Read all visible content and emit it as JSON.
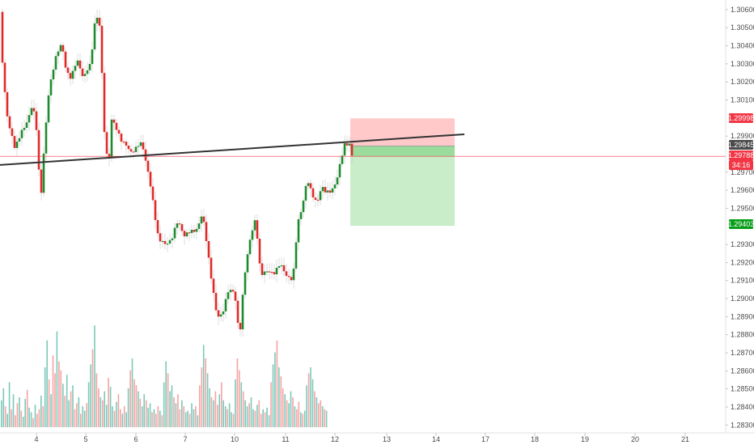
{
  "chart_data": {
    "type": "candlestick",
    "price_axis": {
      "ticks": [
        "1.30600",
        "1.30500",
        "1.30400",
        "1.30300",
        "1.30200",
        "1.30100",
        "1.29900",
        "1.29700",
        "1.29600",
        "1.29500",
        "1.29300",
        "1.29200",
        "1.29100",
        "1.29000",
        "1.28900",
        "1.28800",
        "1.28700",
        "1.28600",
        "1.28500",
        "1.28400",
        "1.28300"
      ],
      "ylim": [
        1.2827,
        1.3064
      ],
      "log_scale": false
    },
    "time_axis": {
      "ticks": [
        "4",
        "5",
        "6",
        "7",
        "10",
        "11",
        "12",
        "13",
        "14",
        "17",
        "18",
        "19",
        "20",
        "21"
      ]
    },
    "price_badges": [
      {
        "label": "1.29998",
        "value": 1.29998,
        "color": "#f23645"
      },
      {
        "label": "1.29845",
        "value": 1.29845,
        "color": "#4a4a4a"
      },
      {
        "label": "1.29788",
        "value": 1.29788,
        "color": "#f23645"
      },
      {
        "label": "34:16",
        "value": 1.2972,
        "color": "#f23645"
      },
      {
        "label": "1.29403",
        "value": 1.29403,
        "color": "#089e1b"
      }
    ],
    "colors": {
      "up": "#1e8a2e",
      "down": "#e02a2a",
      "volume_up": "#7cc9b9",
      "volume_down": "#f4a3a3",
      "trendline": "#333333",
      "current_price_line": "#f23645"
    },
    "trendline": {
      "start": {
        "day": "3",
        "price": 1.2974
      },
      "end": {
        "day": "14",
        "price": 1.2991
      }
    },
    "current_price_line": 1.29788,
    "position": {
      "type": "short",
      "entry": 1.29845,
      "stop": 1.29998,
      "target": 1.29403,
      "current": 1.29788,
      "from_day": "12",
      "to_day": "14",
      "colors": {
        "loss": "#ffc9c9",
        "profit": "#c9ecc9",
        "profit_open": "#9bdb9b"
      }
    },
    "grid": false,
    "legend": "none",
    "price_anchors": [
      [
        0,
        1.3058
      ],
      [
        4,
        1.3024
      ],
      [
        10,
        1.2996
      ],
      [
        18,
        1.2985
      ],
      [
        30,
        1.2994
      ],
      [
        40,
        1.3008
      ],
      [
        46,
        1.299
      ],
      [
        50,
        1.2952
      ],
      [
        53,
        1.2976
      ],
      [
        60,
        1.3012
      ],
      [
        68,
        1.3034
      ],
      [
        76,
        1.304
      ],
      [
        82,
        1.3027
      ],
      [
        88,
        1.3022
      ],
      [
        96,
        1.3032
      ],
      [
        104,
        1.3022
      ],
      [
        112,
        1.303
      ],
      [
        118,
        1.3058
      ],
      [
        124,
        1.3049
      ],
      [
        128,
        1.2998
      ],
      [
        134,
        1.2972
      ],
      [
        138,
        1.2998
      ],
      [
        146,
        1.2993
      ],
      [
        152,
        1.2986
      ],
      [
        160,
        1.2982
      ],
      [
        168,
        1.2983
      ],
      [
        176,
        1.2986
      ],
      [
        182,
        1.2973
      ],
      [
        190,
        1.295
      ],
      [
        196,
        1.2934
      ],
      [
        204,
        1.2929
      ],
      [
        212,
        1.2934
      ],
      [
        220,
        1.2942
      ],
      [
        228,
        1.2936
      ],
      [
        236,
        1.2936
      ],
      [
        244,
        1.294
      ],
      [
        250,
        1.2946
      ],
      [
        256,
        1.293
      ],
      [
        262,
        1.2909
      ],
      [
        268,
        1.2889
      ],
      [
        274,
        1.2892
      ],
      [
        282,
        1.2903
      ],
      [
        290,
        1.2905
      ],
      [
        296,
        1.2877
      ],
      [
        302,
        1.2912
      ],
      [
        308,
        1.2932
      ],
      [
        316,
        1.2943
      ],
      [
        322,
        1.2915
      ],
      [
        330,
        1.2914
      ],
      [
        338,
        1.2915
      ],
      [
        346,
        1.2918
      ],
      [
        354,
        1.2914
      ],
      [
        362,
        1.2909
      ],
      [
        368,
        1.2943
      ],
      [
        374,
        1.2952
      ],
      [
        380,
        1.2965
      ],
      [
        386,
        1.2959
      ],
      [
        392,
        1.2952
      ],
      [
        398,
        1.2962
      ],
      [
        404,
        1.296
      ],
      [
        410,
        1.2958
      ],
      [
        416,
        1.2966
      ],
      [
        420,
        1.2975
      ],
      [
        426,
        1.2984
      ],
      [
        432,
        1.2986
      ],
      [
        436,
        1.29788
      ]
    ],
    "volume_values": [
      18,
      26,
      14,
      9,
      30,
      12,
      22,
      8,
      16,
      20,
      11,
      7,
      19,
      25,
      13,
      10,
      6,
      15,
      9,
      12,
      21,
      14,
      40,
      58,
      32,
      22,
      48,
      36,
      64,
      44,
      38,
      29,
      21,
      35,
      18,
      24,
      28,
      12,
      16,
      20,
      9,
      14,
      11,
      16,
      30,
      42,
      52,
      68,
      36,
      26,
      20,
      18,
      24,
      15,
      33,
      27,
      14,
      11,
      17,
      22,
      12,
      9,
      14,
      10,
      26,
      38,
      46,
      32,
      28,
      24,
      19,
      14,
      22,
      18,
      13,
      16,
      10,
      12,
      9,
      14,
      11,
      8,
      30,
      44,
      36,
      24,
      28,
      20,
      16,
      22,
      12,
      18,
      14,
      10,
      11,
      9,
      16,
      12,
      14,
      8,
      28,
      40,
      55,
      46,
      36,
      26,
      20,
      18,
      24,
      15,
      22,
      30,
      18,
      14,
      12,
      16,
      10,
      9,
      32,
      46,
      38,
      30,
      24,
      18,
      14,
      16,
      20,
      12,
      11,
      15,
      18,
      9,
      12,
      10,
      13,
      8,
      30,
      42,
      50,
      58,
      40,
      34,
      26,
      22,
      18,
      16,
      24,
      20,
      14,
      12,
      17,
      10,
      9,
      11,
      28,
      36,
      40,
      32,
      24,
      20,
      16,
      18,
      14,
      12,
      11
    ]
  }
}
